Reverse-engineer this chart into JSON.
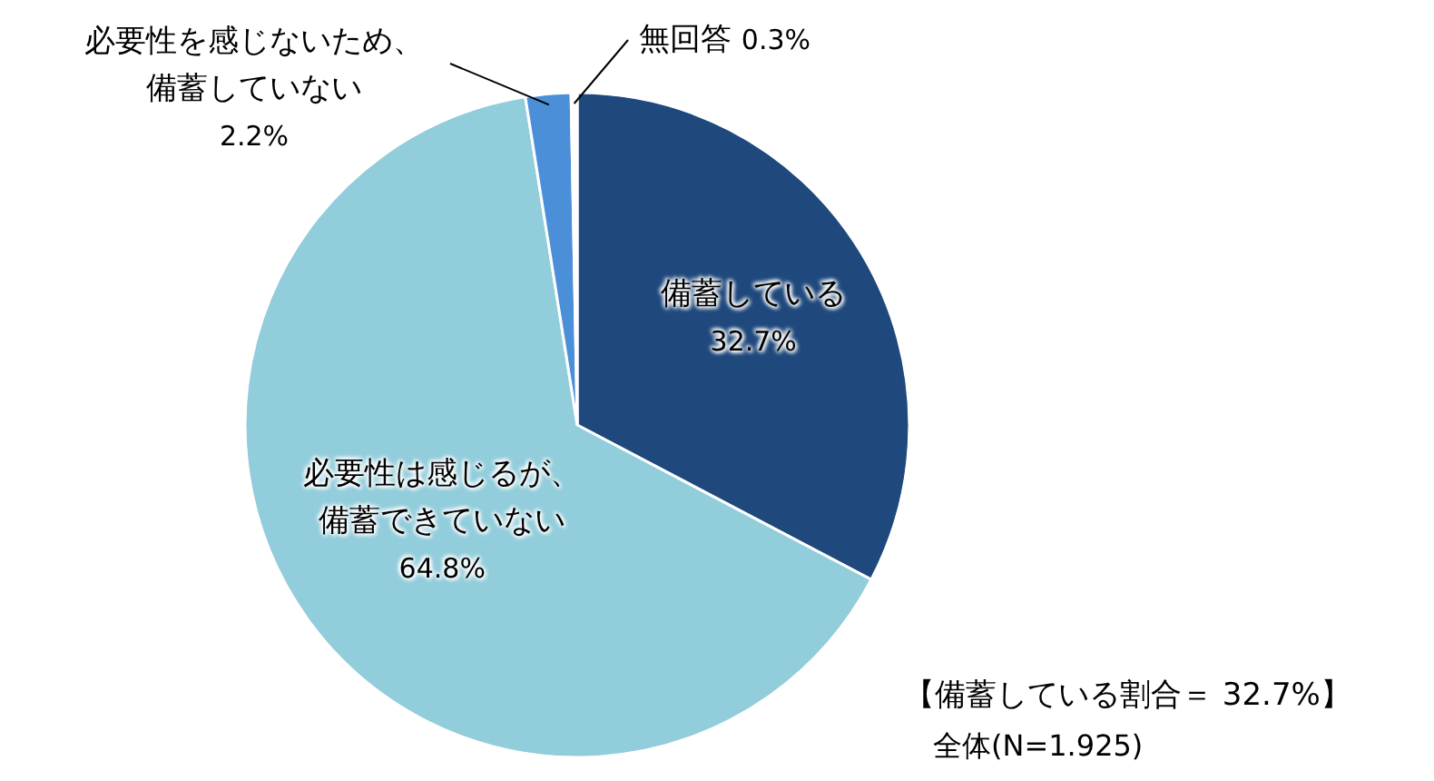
{
  "chart_data": {
    "type": "pie",
    "categories": [
      "備蓄している",
      "必要性は感じるが、備蓄できていない",
      "必要性を感じないため、備蓄していない",
      "無回答"
    ],
    "values": [
      32.7,
      64.8,
      2.2,
      0.3
    ],
    "value_labels": [
      "32.7%",
      "64.8%",
      "2.2%",
      "0.3%"
    ],
    "colors": [
      "#1f497d",
      "#92cddc",
      "#4a8fd8",
      "#ffffff"
    ],
    "annotations": [
      "【備蓄している割合＝ 32.7%】",
      "全体(N=1.925)"
    ]
  }
}
